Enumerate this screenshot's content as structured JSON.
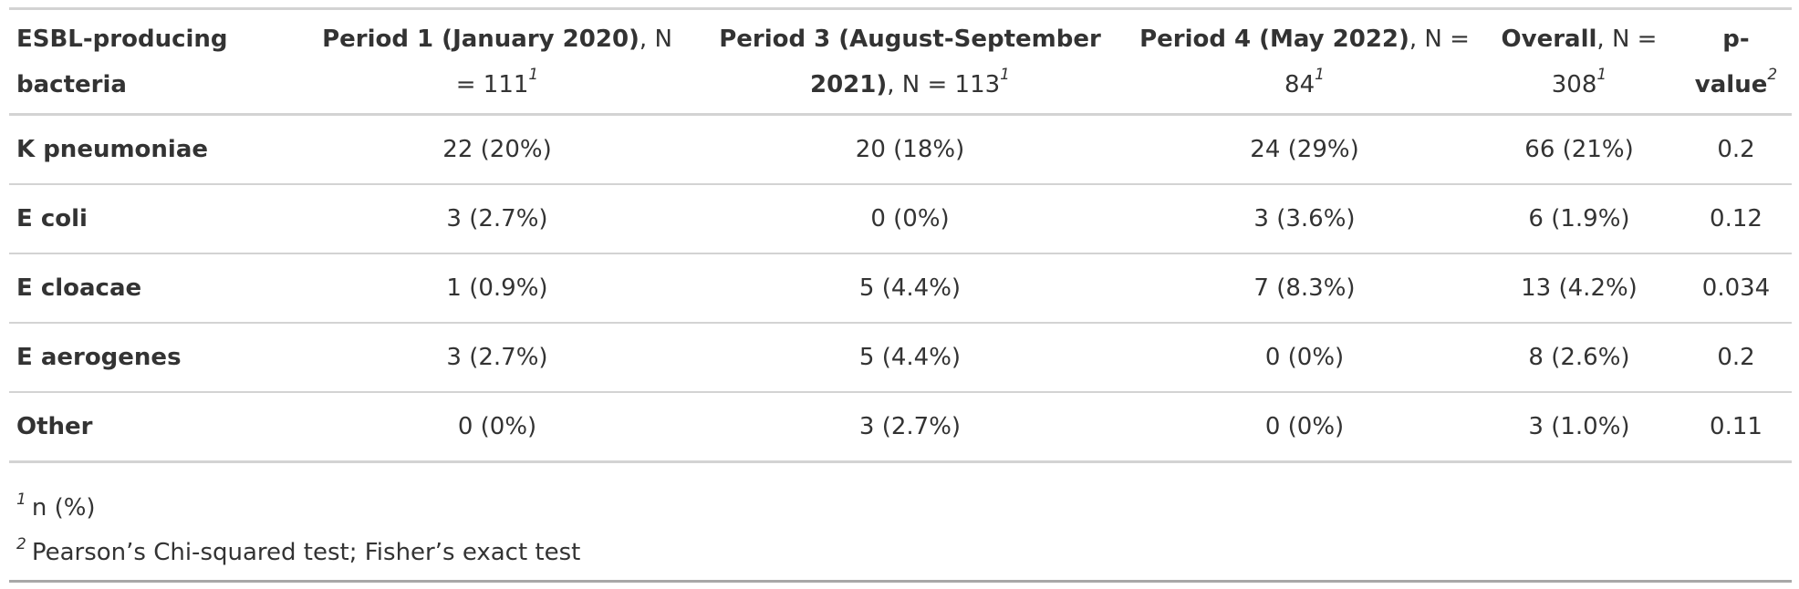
{
  "table": {
    "headers": [
      {
        "bold": "ESBL-producing bacteria",
        "rest": "",
        "mark": ""
      },
      {
        "bold": "Period 1 (January 2020)",
        "rest": ", N = 111",
        "mark": "1"
      },
      {
        "bold": "Period 3 (August-September 2021)",
        "rest": ", N = 113",
        "mark": "1"
      },
      {
        "bold": "Period 4 (May 2022)",
        "rest": ", N = 84",
        "mark": "1"
      },
      {
        "bold": "Overall",
        "rest": ", N = 308",
        "mark": "1"
      },
      {
        "bold": "p-value",
        "rest": "",
        "mark": "2"
      }
    ],
    "rows": [
      {
        "label": "K pneumoniae",
        "cells": [
          "22 (20%)",
          "20 (18%)",
          "24 (29%)",
          "66 (21%)",
          "0.2"
        ]
      },
      {
        "label": "E coli",
        "cells": [
          "3 (2.7%)",
          "0 (0%)",
          "3 (3.6%)",
          "6 (1.9%)",
          "0.12"
        ]
      },
      {
        "label": "E cloacae",
        "cells": [
          "1 (0.9%)",
          "5 (4.4%)",
          "7 (8.3%)",
          "13 (4.2%)",
          "0.034"
        ]
      },
      {
        "label": "E aerogenes",
        "cells": [
          "3 (2.7%)",
          "5 (4.4%)",
          "0 (0%)",
          "8 (2.6%)",
          "0.2"
        ]
      },
      {
        "label": "Other",
        "cells": [
          "0 (0%)",
          "3 (2.7%)",
          "0 (0%)",
          "3 (1.0%)",
          "0.11"
        ]
      }
    ],
    "footnotes": [
      {
        "mark": "1",
        "text": "n (%)"
      },
      {
        "mark": "2",
        "text": "Pearson’s Chi-squared test; Fisher’s exact test"
      }
    ]
  },
  "colors": {
    "text": "#333333",
    "rule": "#d3d3d3",
    "bottom_rule": "#a8a8a8"
  }
}
